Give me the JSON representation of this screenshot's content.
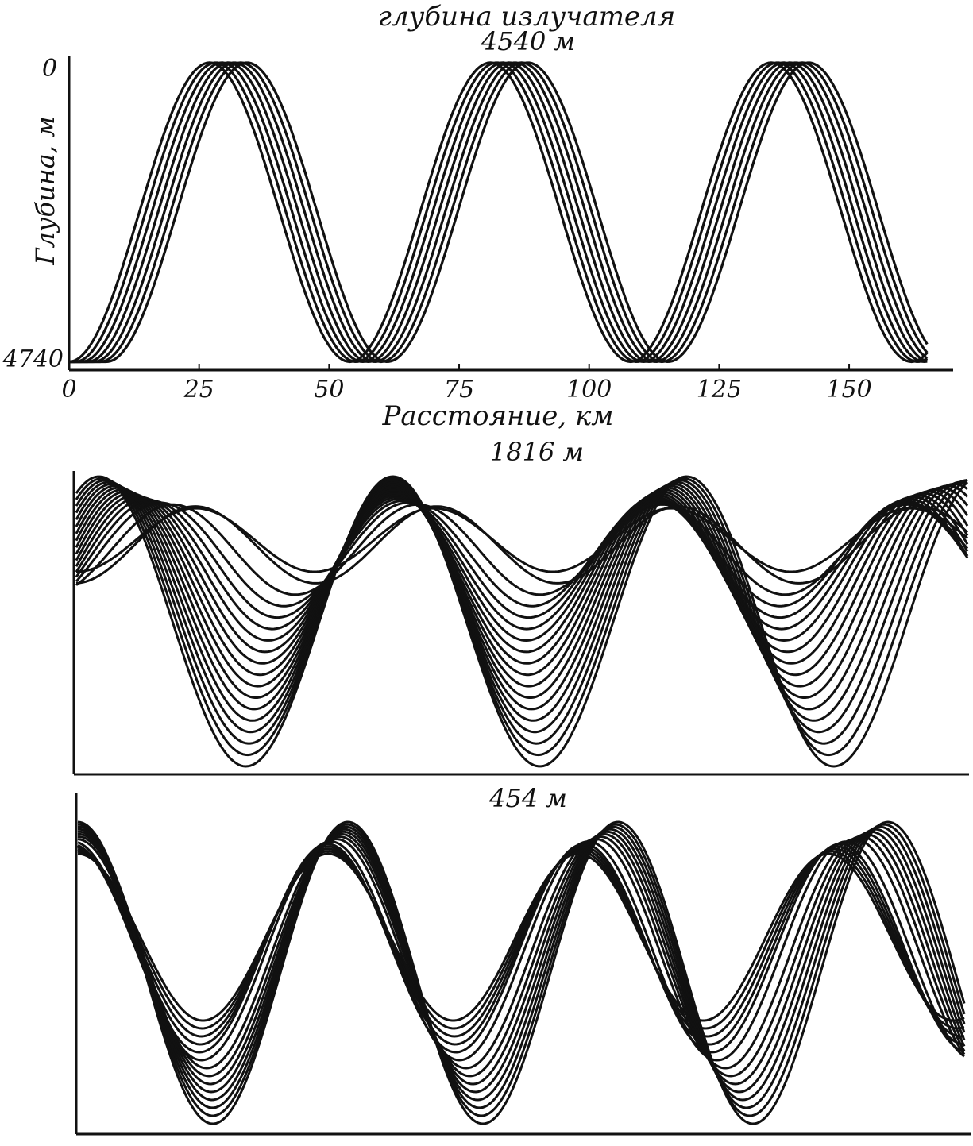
{
  "figure_title": "глубина излучателя",
  "chart_data": [
    {
      "type": "line",
      "title": "4540 м",
      "ylabel": "Глубина, м",
      "xlabel": "Расстояние, км",
      "xlim": [
        0,
        170
      ],
      "ylim": [
        4740,
        0
      ],
      "xticks": [
        "0",
        "25",
        "50",
        "75",
        "100",
        "125",
        "150"
      ],
      "yticks": [
        "0",
        "4740"
      ],
      "source_depth": 4540,
      "ray_count": 7,
      "cycle_km": 54,
      "shift_km": 1.2,
      "turn_top": 60,
      "turn_bottom": 4660,
      "grid": false
    },
    {
      "type": "line",
      "title": "1816 м",
      "source_depth": 1816,
      "ray_count": 18,
      "grid": false
    },
    {
      "type": "line",
      "title": "454 м",
      "source_depth": 454,
      "ray_count": 14,
      "grid": false
    }
  ]
}
